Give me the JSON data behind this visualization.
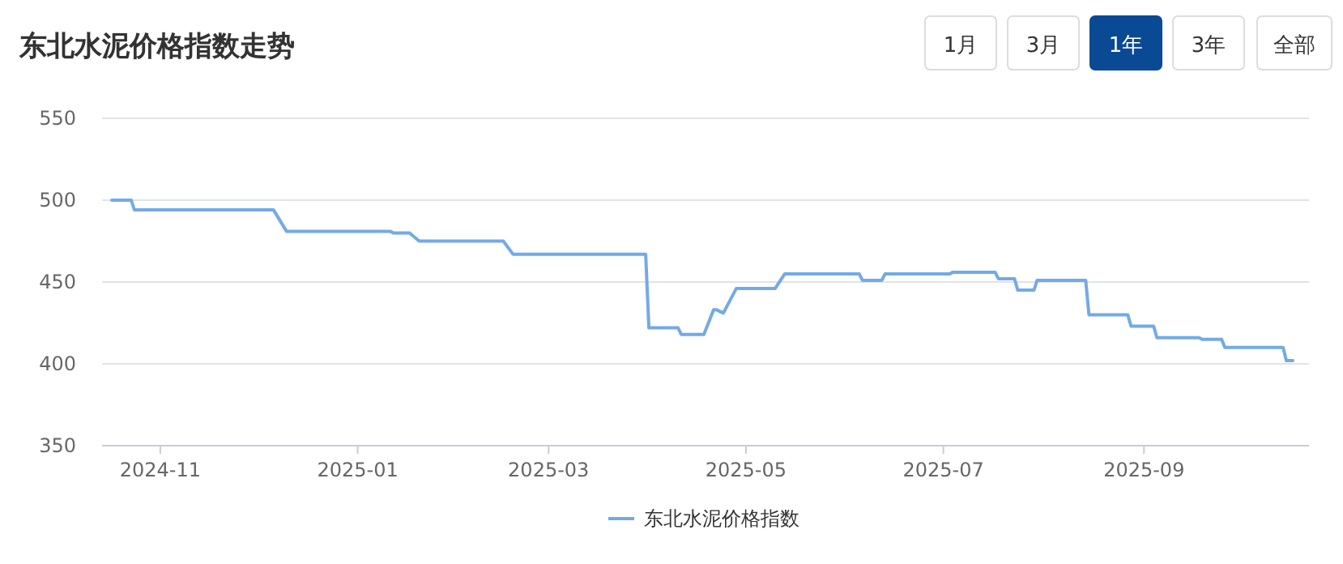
{
  "chart_data": {
    "type": "line",
    "title": "东北水泥价格指数走势",
    "annotations": [
      "1月",
      "3月",
      "1年",
      "3年",
      "全部"
    ],
    "xlim": [
      "2024-10-14",
      "2025-10-22"
    ],
    "xticks": [
      "2024-11",
      "2025-01",
      "2025-03",
      "2025-05",
      "2025-07",
      "2025-09"
    ],
    "ylim": [
      350,
      550
    ],
    "yticks": [
      350,
      400,
      450,
      500,
      550
    ],
    "grid": "y",
    "legend": "bottom",
    "marker": "none",
    "line_style": "solid",
    "series": [
      {
        "name": "东北水泥价格指数",
        "color": "#73aae6",
        "x": [
          "2024-10-17",
          "2024-10-23",
          "2024-10-24",
          "2024-12-06",
          "2024-12-10",
          "2025-01-11",
          "2025-01-12",
          "2025-01-17",
          "2025-01-20",
          "2025-02-15",
          "2025-02-18",
          "2025-03-31",
          "2025-04-01",
          "2025-04-10",
          "2025-04-11",
          "2025-04-18",
          "2025-04-21",
          "2025-04-22",
          "2025-04-24",
          "2025-04-28",
          "2025-05-10",
          "2025-05-13",
          "2025-06-05",
          "2025-06-06",
          "2025-06-12",
          "2025-06-13",
          "2025-07-03",
          "2025-07-04",
          "2025-07-17",
          "2025-07-18",
          "2025-07-23",
          "2025-07-24",
          "2025-07-29",
          "2025-07-30",
          "2025-08-14",
          "2025-08-15",
          "2025-08-27",
          "2025-08-28",
          "2025-09-04",
          "2025-09-05",
          "2025-09-18",
          "2025-09-19",
          "2025-09-25",
          "2025-09-26",
          "2025-10-14",
          "2025-10-15",
          "2025-10-17"
        ],
        "values": [
          500,
          500,
          494,
          494,
          481,
          481,
          480,
          480,
          475,
          475,
          467,
          467,
          422,
          422,
          418,
          418,
          433,
          433,
          431,
          446,
          446,
          455,
          455,
          451,
          451,
          455,
          455,
          456,
          456,
          452,
          452,
          445,
          445,
          451,
          451,
          430,
          430,
          423,
          423,
          416,
          416,
          415,
          415,
          410,
          410,
          402,
          402
        ]
      }
    ]
  }
}
